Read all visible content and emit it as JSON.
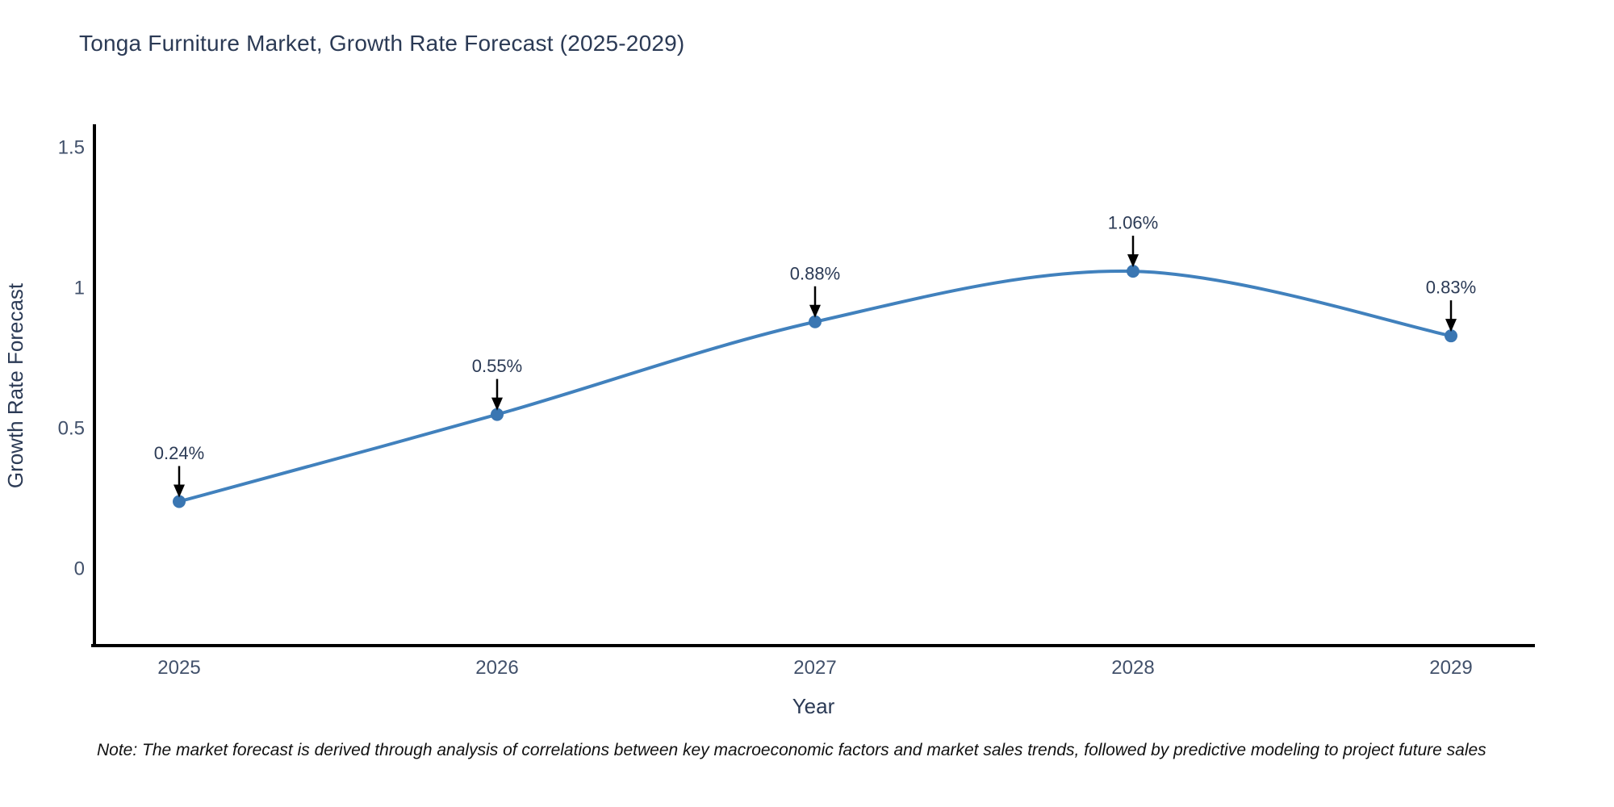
{
  "title": "Tonga Furniture Market, Growth Rate Forecast (2025-2029)",
  "note": "Note: The market forecast is derived through analysis of correlations between key macroeconomic factors and market sales trends, followed by predictive modeling to project future sales",
  "chart_data": {
    "type": "line",
    "title": "Tonga Furniture Market, Growth Rate Forecast (2025-2029)",
    "xlabel": "Year",
    "ylabel": "Growth Rate Forecast",
    "x": [
      "2025",
      "2026",
      "2027",
      "2028",
      "2029"
    ],
    "values": [
      0.24,
      0.55,
      0.88,
      1.06,
      0.83
    ],
    "point_labels": [
      "0.24%",
      "0.55%",
      "0.88%",
      "1.06%",
      "0.83%"
    ],
    "ytick_values": [
      0,
      0.5,
      1,
      1.5
    ],
    "ytick_labels": [
      "0",
      "0.5",
      "1",
      "1.5"
    ],
    "ylim": [
      -0.27,
      1.56
    ],
    "grid": false,
    "legend": "none",
    "smoothing": "spline",
    "line_color": "#4181bd",
    "marker_color": "#3a76b2",
    "arrow_color": "#000000"
  }
}
